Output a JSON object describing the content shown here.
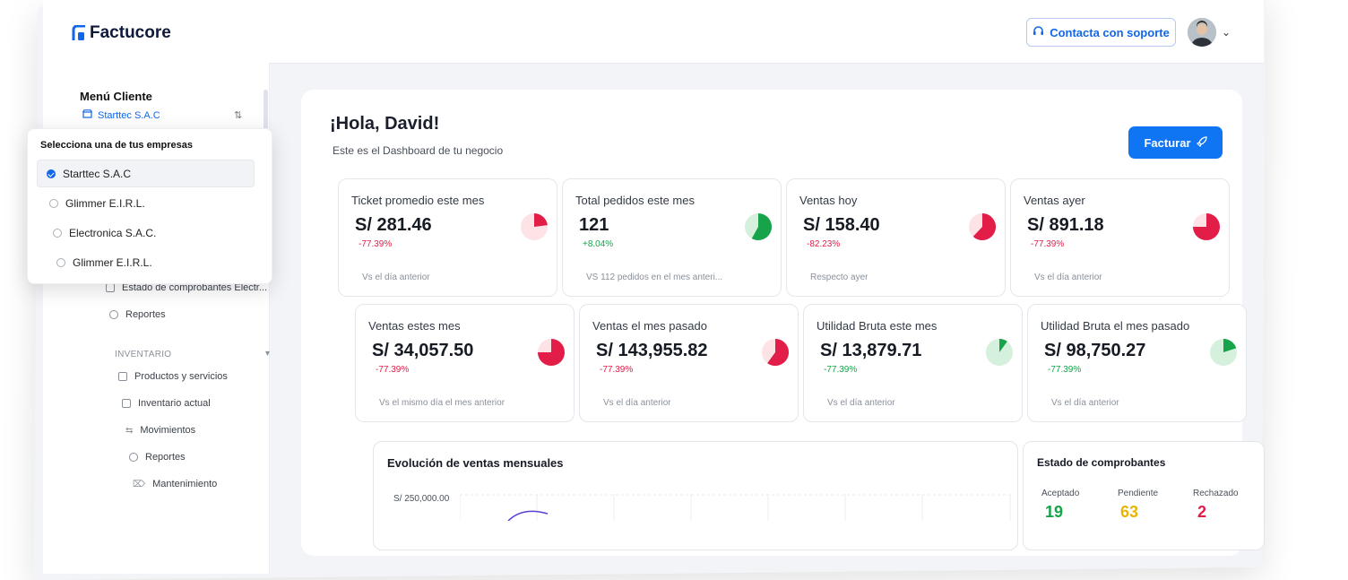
{
  "brand": {
    "name": "Factucore",
    "accent": "#1167e8"
  },
  "header": {
    "support_label": "Contacta con soporte",
    "support_icon": "headset-icon",
    "user_menu_icon": "chevron-down-icon"
  },
  "sidebar": {
    "menu_title": "Menú Cliente",
    "current_company": "Starttec S.A.C",
    "items": [
      {
        "label": "Estado de comprobantes Electr...",
        "icon": "document-icon"
      },
      {
        "label": "Reportes",
        "icon": "report-icon"
      }
    ],
    "inventory_section": "INVENTARIO",
    "inventory_items": [
      {
        "label": "Productos y servicios",
        "icon": "box-icon"
      },
      {
        "label": "Inventario actual",
        "icon": "cube-icon"
      },
      {
        "label": "Movimientos",
        "icon": "arrows-icon"
      },
      {
        "label": "Reportes",
        "icon": "report-icon"
      },
      {
        "label": "Mantenimiento",
        "icon": "tag-icon"
      }
    ]
  },
  "company_dropdown": {
    "title": "Selecciona una de tus empresas",
    "options": [
      {
        "label": "Starttec S.A.C",
        "selected": true
      },
      {
        "label": "Glimmer E.I.R.L.",
        "selected": false
      },
      {
        "label": "Electronica S.A.C.",
        "selected": false
      },
      {
        "label": "Glimmer E.I.R.L.",
        "selected": false
      }
    ]
  },
  "dashboard": {
    "greeting": "¡Hola, David!",
    "subtitle": "Este es el Dashboard de tu negocio",
    "bill_button": "Facturar",
    "kpis_row1": [
      {
        "label": "Ticket promedio este mes",
        "value": "S/ 281.46",
        "change": "-77.39%",
        "trend": "down",
        "footer": "Vs el día anterior",
        "pie_fraction": 0.23
      },
      {
        "label": "Total pedidos este mes",
        "value": "121",
        "change": "+8.04%",
        "trend": "up",
        "footer": "VS 112 pedidos en el mes anteri...",
        "pie_fraction": 0.58
      },
      {
        "label": "Ventas hoy",
        "value": "S/ 158.40",
        "change": "-82.23%",
        "trend": "down",
        "footer": "Respecto ayer",
        "pie_fraction": 0.62
      },
      {
        "label": "Ventas ayer",
        "value": "S/ 891.18",
        "change": "-77.39%",
        "trend": "down",
        "footer": "Vs el día anterior",
        "pie_fraction": 0.75
      }
    ],
    "kpis_row2": [
      {
        "label": "Ventas estes mes",
        "value": "S/ 34,057.50",
        "change": "-77.39%",
        "trend": "down",
        "footer": "Vs el mismo día el mes anterior",
        "pie_fraction": 0.75
      },
      {
        "label": "Ventas el mes pasado",
        "value": "S/ 143,955.82",
        "change": "-77.39%",
        "trend": "down",
        "footer": "Vs el día anterior",
        "pie_fraction": 0.6
      },
      {
        "label": "Utilidad Bruta este mes",
        "value": "S/ 13,879.71",
        "change": "-77.39%",
        "trend": "up",
        "footer": "Vs el día anterior",
        "pie_fraction": 0.1
      },
      {
        "label": "Utilidad Bruta el mes pasado",
        "value": "S/ 98,750.27",
        "change": "-77.39%",
        "trend": "up",
        "footer": "Vs el día anterior",
        "pie_fraction": 0.2
      }
    ],
    "sales_chart": {
      "title": "Evolución de ventas mensuales",
      "top_tick": "S/ 250,000.00"
    },
    "status": {
      "title": "Estado de comprobantes",
      "items": [
        {
          "label": "Aceptado",
          "value": "19",
          "color": "#16a34a"
        },
        {
          "label": "Pendiente",
          "value": "63",
          "color": "#eab308"
        },
        {
          "label": "Rechazado",
          "value": "2",
          "color": "#e11d48"
        }
      ]
    }
  },
  "colors": {
    "down": "#e11d48",
    "up": "#16a34a",
    "down_light": "#fde2e6",
    "up_light": "#d5f0dc"
  }
}
